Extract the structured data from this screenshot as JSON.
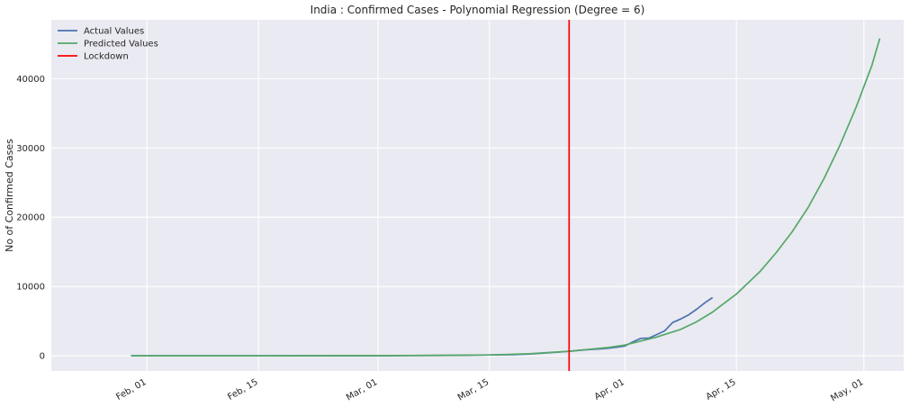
{
  "chart_data": {
    "type": "line",
    "title": "India : Confirmed Cases - Polynomial Regression (Degree = 6)",
    "xlabel": "",
    "ylabel": "No of Confirmed Cases",
    "x_axis": {
      "type": "date",
      "range": [
        "2020-01-20",
        "2020-05-06"
      ],
      "tick_labels": [
        "Feb, 01",
        "Feb, 15",
        "Mar, 01",
        "Mar, 15",
        "Apr, 01",
        "Apr, 15",
        "May, 01"
      ],
      "tick_dates": [
        "2020-02-01",
        "2020-02-15",
        "2020-03-01",
        "2020-03-15",
        "2020-04-01",
        "2020-04-15",
        "2020-05-01"
      ]
    },
    "y_axis": {
      "range": [
        -2200,
        48500
      ],
      "ticks": [
        0,
        10000,
        20000,
        30000,
        40000
      ],
      "tick_labels": [
        "0",
        "10000",
        "20000",
        "30000",
        "40000"
      ]
    },
    "grid": true,
    "legend_position": "top-left",
    "series": [
      {
        "name": "Actual Values",
        "color": "#4c72b0",
        "points": [
          [
            "2020-01-30",
            1
          ],
          [
            "2020-02-10",
            3
          ],
          [
            "2020-02-20",
            3
          ],
          [
            "2020-03-01",
            3
          ],
          [
            "2020-03-05",
            30
          ],
          [
            "2020-03-10",
            60
          ],
          [
            "2020-03-15",
            110
          ],
          [
            "2020-03-18",
            150
          ],
          [
            "2020-03-20",
            250
          ],
          [
            "2020-03-22",
            400
          ],
          [
            "2020-03-24",
            550
          ],
          [
            "2020-03-25",
            650
          ],
          [
            "2020-03-27",
            850
          ],
          [
            "2020-03-29",
            1000
          ],
          [
            "2020-03-30",
            1100
          ],
          [
            "2020-03-31",
            1250
          ],
          [
            "2020-04-01",
            1400
          ],
          [
            "2020-04-02",
            2000
          ],
          [
            "2020-04-03",
            2500
          ],
          [
            "2020-04-04",
            2550
          ],
          [
            "2020-04-05",
            3050
          ],
          [
            "2020-04-06",
            3600
          ],
          [
            "2020-04-07",
            4800
          ],
          [
            "2020-04-08",
            5300
          ],
          [
            "2020-04-09",
            5900
          ],
          [
            "2020-04-10",
            6700
          ],
          [
            "2020-04-11",
            7600
          ],
          [
            "2020-04-12",
            8400
          ]
        ]
      },
      {
        "name": "Predicted Values",
        "color": "#55a868",
        "points": [
          [
            "2020-01-30",
            0
          ],
          [
            "2020-02-15",
            0
          ],
          [
            "2020-03-01",
            10
          ],
          [
            "2020-03-10",
            60
          ],
          [
            "2020-03-15",
            120
          ],
          [
            "2020-03-20",
            300
          ],
          [
            "2020-03-25",
            650
          ],
          [
            "2020-03-30",
            1200
          ],
          [
            "2020-04-01",
            1550
          ],
          [
            "2020-04-05",
            2700
          ],
          [
            "2020-04-08",
            3800
          ],
          [
            "2020-04-10",
            4900
          ],
          [
            "2020-04-12",
            6300
          ],
          [
            "2020-04-15",
            8900
          ],
          [
            "2020-04-18",
            12200
          ],
          [
            "2020-04-20",
            14900
          ],
          [
            "2020-04-22",
            17900
          ],
          [
            "2020-04-24",
            21400
          ],
          [
            "2020-04-26",
            25600
          ],
          [
            "2020-04-28",
            30400
          ],
          [
            "2020-04-30",
            35800
          ],
          [
            "2020-05-02",
            41900
          ],
          [
            "2020-05-03",
            45800
          ]
        ]
      },
      {
        "name": "Lockdown",
        "color": "#ff0000",
        "vertical_line_date": "2020-03-25"
      }
    ]
  }
}
